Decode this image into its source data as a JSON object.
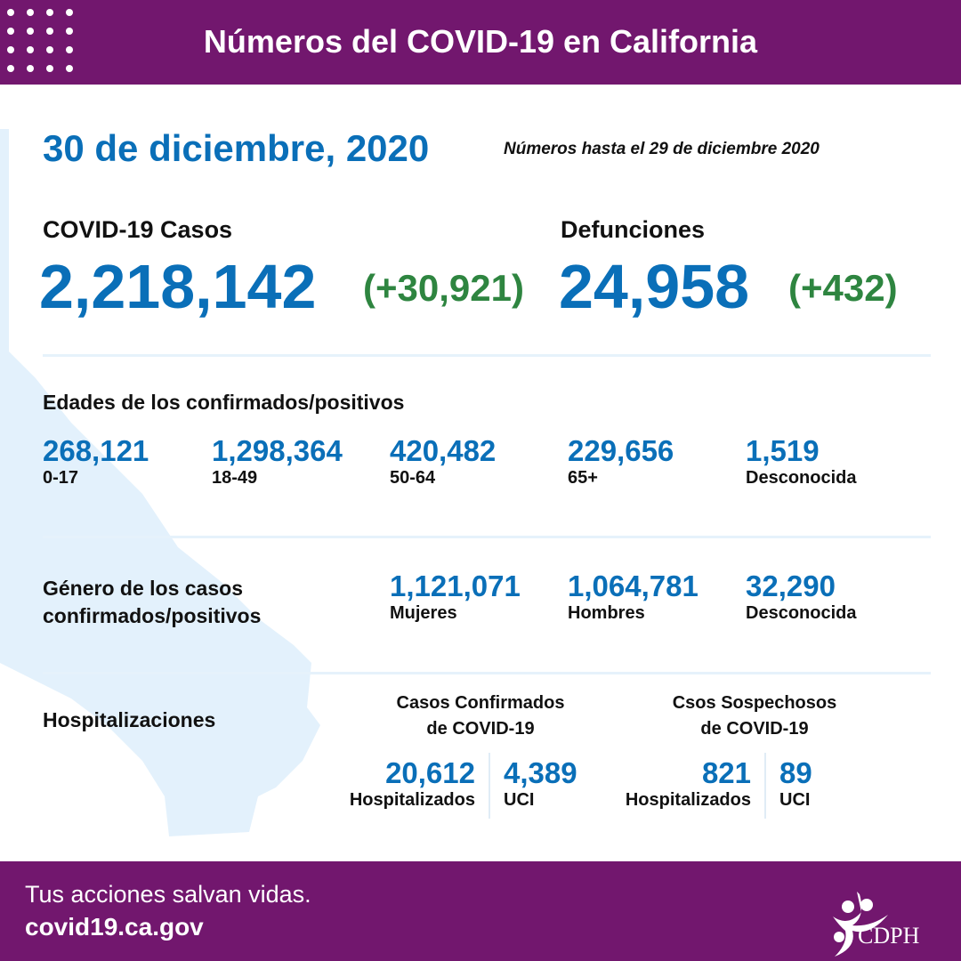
{
  "header": {
    "title": "Números del COVID-19 en California"
  },
  "date": "30 de diciembre, 2020",
  "as_of": "Números hasta el 29 de diciembre 2020",
  "cases": {
    "label": "COVID-19 Casos",
    "total": "2,218,142",
    "change": "(+30,921)"
  },
  "deaths": {
    "label": "Defunciones",
    "total": "24,958",
    "change": "(+432)"
  },
  "ages": {
    "heading": "Edades de los confirmados/positivos",
    "items": [
      {
        "value": "268,121",
        "label": "0-17"
      },
      {
        "value": "1,298,364",
        "label": "18-49"
      },
      {
        "value": "420,482",
        "label": "50-64"
      },
      {
        "value": "229,656",
        "label": "65+"
      },
      {
        "value": "1,519",
        "label": "Desconocida"
      }
    ]
  },
  "gender": {
    "heading_line1": "Género de los casos",
    "heading_line2": "confirmados/positivos",
    "items": [
      {
        "value": "1,121,071",
        "label": "Mujeres"
      },
      {
        "value": "1,064,781",
        "label": "Hombres"
      },
      {
        "value": "32,290",
        "label": "Desconocida"
      }
    ]
  },
  "hosp": {
    "heading": "Hospitalizaciones",
    "confirmed": {
      "title1": "Casos Confirmados",
      "title2": "de COVID-19",
      "hosp_value": "20,612",
      "hosp_label": "Hospitalizados",
      "icu_value": "4,389",
      "icu_label": "UCI"
    },
    "suspected": {
      "title1": "Csos Sospechosos",
      "title2": "de COVID-19",
      "hosp_value": "821",
      "hosp_label": "Hospitalizados",
      "icu_value": "89",
      "icu_label": "UCI"
    }
  },
  "footer": {
    "tagline": "Tus acciones salvan vidas.",
    "url": "covid19.ca.gov",
    "logo_text": "CDPH"
  },
  "colors": {
    "purple": "#72176e",
    "blue": "#0a6fb8",
    "green": "#2e8540",
    "map": "#e3f1fc"
  }
}
